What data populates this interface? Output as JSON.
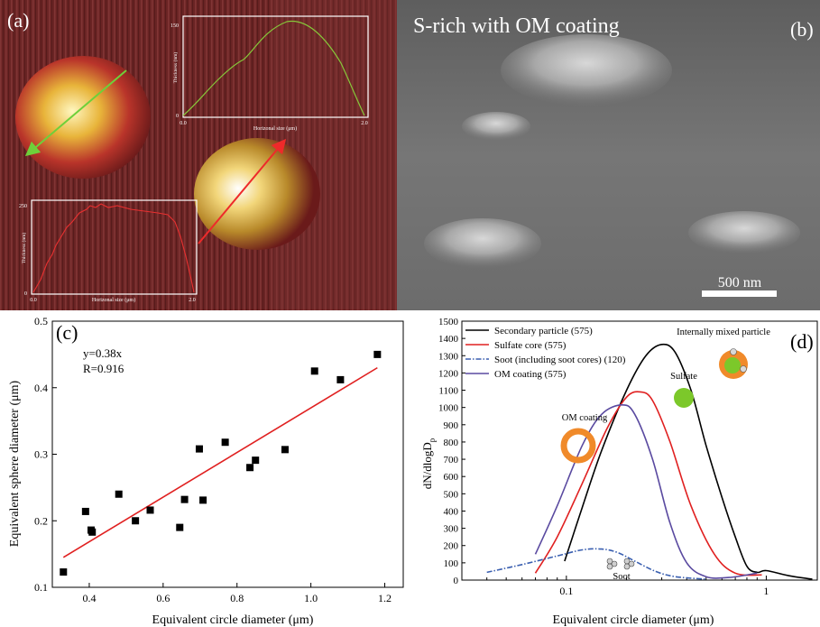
{
  "panel_a": {
    "label": "(a)",
    "green_profile": {
      "y_ticks": [
        "150",
        "0"
      ],
      "x_ticks": [
        "0.0",
        "2.0"
      ],
      "xlabel": "Horizonal size (μm)",
      "ylabel": "Thickness (nm)"
    },
    "red_profile": {
      "y_ticks": [
        "250",
        "0"
      ],
      "x_ticks": [
        "0.0",
        "2.0"
      ],
      "xlabel": "Horizonal size (μm)",
      "ylabel": "Thickness (nm)"
    }
  },
  "panel_b": {
    "label": "(b)",
    "title": "S-rich with OM coating",
    "scale_bar": "500 nm"
  },
  "chart_data": [
    {
      "type": "scatter",
      "panel": "(c)",
      "xlabel": "Equivalent circle diameter (μm)",
      "ylabel": "Equivalent sphere diameter (μm)",
      "xlim": [
        0.3,
        1.25
      ],
      "ylim": [
        0.1,
        0.5
      ],
      "x_ticks": [
        "0.4",
        "0.6",
        "0.8",
        "1.0",
        "1.2"
      ],
      "y_ticks": [
        "0.1",
        "0.2",
        "0.3",
        "0.4",
        "0.5"
      ],
      "fit_equation": "y=0.38x",
      "fit_r": "R=0.916",
      "fit_line": [
        [
          0.33,
          0.145
        ],
        [
          1.18,
          0.43
        ]
      ],
      "points": [
        [
          0.33,
          0.123
        ],
        [
          0.39,
          0.214
        ],
        [
          0.405,
          0.186
        ],
        [
          0.408,
          0.183
        ],
        [
          0.48,
          0.24
        ],
        [
          0.525,
          0.2
        ],
        [
          0.565,
          0.216
        ],
        [
          0.645,
          0.19
        ],
        [
          0.658,
          0.232
        ],
        [
          0.698,
          0.308
        ],
        [
          0.708,
          0.231
        ],
        [
          0.768,
          0.318
        ],
        [
          0.835,
          0.28
        ],
        [
          0.85,
          0.291
        ],
        [
          0.93,
          0.307
        ],
        [
          1.01,
          0.425
        ],
        [
          1.08,
          0.412
        ],
        [
          1.18,
          0.45
        ]
      ]
    },
    {
      "type": "line",
      "panel": "(d)",
      "xlabel": "Equivalent circle diameter (μm)",
      "ylabel": "dN/dlogD",
      "ylabel_sub": "p",
      "x_scale": "log",
      "xlim": [
        0.03,
        1.8
      ],
      "ylim": [
        0,
        1500
      ],
      "x_ticks": [
        {
          "v": 0.1,
          "label": "0.1"
        },
        {
          "v": 1,
          "label": "1"
        }
      ],
      "y_ticks": [
        "0",
        "100",
        "200",
        "300",
        "400",
        "500",
        "600",
        "700",
        "800",
        "900",
        "1000",
        "1100",
        "1200",
        "1300",
        "1400",
        "1500"
      ],
      "legend_position": "top-left",
      "series": [
        {
          "name": "Secondary particle (575)",
          "color": "#000000",
          "dash": "",
          "points": [
            [
              0.098,
              110
            ],
            [
              0.12,
              420
            ],
            [
              0.15,
              750
            ],
            [
              0.2,
              1100
            ],
            [
              0.25,
              1300
            ],
            [
              0.3,
              1365
            ],
            [
              0.35,
              1320
            ],
            [
              0.42,
              1100
            ],
            [
              0.5,
              780
            ],
            [
              0.6,
              480
            ],
            [
              0.7,
              250
            ],
            [
              0.8,
              80
            ],
            [
              0.9,
              45
            ],
            [
              1.0,
              55
            ],
            [
              1.3,
              25
            ],
            [
              1.7,
              5
            ]
          ]
        },
        {
          "name": "Sulfate core (575)",
          "color": "#e02020",
          "dash": "",
          "points": [
            [
              0.07,
              40
            ],
            [
              0.09,
              250
            ],
            [
              0.12,
              560
            ],
            [
              0.16,
              880
            ],
            [
              0.2,
              1060
            ],
            [
              0.235,
              1090
            ],
            [
              0.27,
              1040
            ],
            [
              0.33,
              800
            ],
            [
              0.42,
              430
            ],
            [
              0.55,
              150
            ],
            [
              0.7,
              40
            ],
            [
              0.95,
              30
            ]
          ]
        },
        {
          "name": "Soot (including soot cores) (120)",
          "color": "#3a5fb0",
          "dash": "6 2 1.5 2",
          "points": [
            [
              0.04,
              45
            ],
            [
              0.06,
              90
            ],
            [
              0.09,
              140
            ],
            [
              0.12,
              175
            ],
            [
              0.15,
              180
            ],
            [
              0.18,
              160
            ],
            [
              0.22,
              110
            ],
            [
              0.28,
              50
            ],
            [
              0.35,
              20
            ],
            [
              0.5,
              5
            ]
          ]
        },
        {
          "name": "OM coating (575)",
          "color": "#5a4aa0",
          "dash": "",
          "points": [
            [
              0.07,
              150
            ],
            [
              0.09,
              430
            ],
            [
              0.12,
              780
            ],
            [
              0.15,
              960
            ],
            [
              0.19,
              1015
            ],
            [
              0.22,
              960
            ],
            [
              0.27,
              700
            ],
            [
              0.33,
              330
            ],
            [
              0.4,
              100
            ],
            [
              0.5,
              20
            ],
            [
              0.65,
              15
            ],
            [
              0.9,
              40
            ]
          ]
        }
      ],
      "annotations": {
        "internally_mixed": "Internally mixed particle",
        "sulfate": "Sulfate",
        "om_coating": "OM coating",
        "soot": "Soot"
      },
      "panel_label": "(d)"
    }
  ]
}
